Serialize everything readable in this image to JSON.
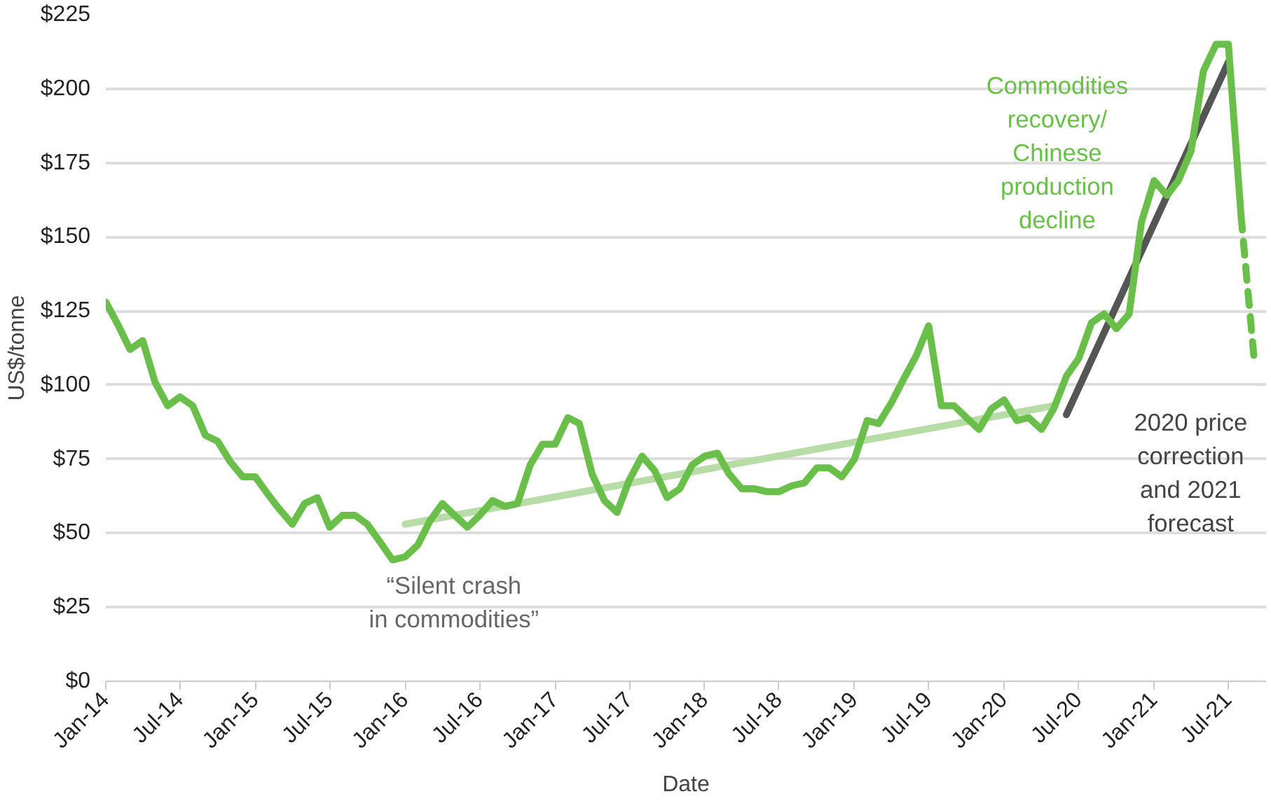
{
  "chart_data": {
    "type": "line",
    "xlabel": "Date",
    "ylabel": "US$/tonne",
    "xlim": [
      "2014-01",
      "2021-10"
    ],
    "ylim": [
      0,
      225
    ],
    "yticks": [
      {
        "value": 0,
        "label": "$0"
      },
      {
        "value": 25,
        "label": "$25"
      },
      {
        "value": 50,
        "label": "$50"
      },
      {
        "value": 75,
        "label": "$75"
      },
      {
        "value": 100,
        "label": "$100"
      },
      {
        "value": 125,
        "label": "$125"
      },
      {
        "value": 150,
        "label": "$150"
      },
      {
        "value": 175,
        "label": "$175"
      },
      {
        "value": 200,
        "label": "$200"
      },
      {
        "value": 225,
        "label": "$225"
      }
    ],
    "xticks": [
      {
        "value": "2014-01",
        "label": "Jan-14"
      },
      {
        "value": "2014-07",
        "label": "Jul-14"
      },
      {
        "value": "2015-01",
        "label": "Jan-15"
      },
      {
        "value": "2015-07",
        "label": "Jul-15"
      },
      {
        "value": "2016-01",
        "label": "Jan-16"
      },
      {
        "value": "2016-07",
        "label": "Jul-16"
      },
      {
        "value": "2017-01",
        "label": "Jan-17"
      },
      {
        "value": "2017-07",
        "label": "Jul-17"
      },
      {
        "value": "2018-01",
        "label": "Jan-18"
      },
      {
        "value": "2018-07",
        "label": "Jul-18"
      },
      {
        "value": "2019-01",
        "label": "Jan-19"
      },
      {
        "value": "2019-07",
        "label": "Jul-19"
      },
      {
        "value": "2020-01",
        "label": "Jan-20"
      },
      {
        "value": "2020-07",
        "label": "Jul-20"
      },
      {
        "value": "2021-01",
        "label": "Jan-21"
      },
      {
        "value": "2021-07",
        "label": "Jul-21"
      }
    ],
    "grid": "y",
    "series": [
      {
        "color": "#b7dca5",
        "line_style": "solid",
        "x": [
          "2016-01",
          "2020-05"
        ],
        "values": [
          53,
          93
        ]
      },
      {
        "color": "#555555",
        "line_style": "solid",
        "x": [
          "2020-06",
          "2021-07"
        ],
        "values": [
          90,
          209
        ]
      },
      {
        "color": "#6abf4b",
        "line_style": "solid",
        "x": [
          "2014-01",
          "2014-02",
          "2014-03",
          "2014-04",
          "2014-05",
          "2014-06",
          "2014-07",
          "2014-08",
          "2014-09",
          "2014-10",
          "2014-11",
          "2014-12",
          "2015-01",
          "2015-02",
          "2015-03",
          "2015-04",
          "2015-05",
          "2015-06",
          "2015-07",
          "2015-08",
          "2015-09",
          "2015-10",
          "2015-11",
          "2015-12",
          "2016-01",
          "2016-02",
          "2016-03",
          "2016-04",
          "2016-05",
          "2016-06",
          "2016-07",
          "2016-08",
          "2016-09",
          "2016-10",
          "2016-11",
          "2016-12",
          "2017-01",
          "2017-02",
          "2017-03",
          "2017-04",
          "2017-05",
          "2017-06",
          "2017-07",
          "2017-08",
          "2017-09",
          "2017-10",
          "2017-11",
          "2017-12",
          "2018-01",
          "2018-02",
          "2018-03",
          "2018-04",
          "2018-05",
          "2018-06",
          "2018-07",
          "2018-08",
          "2018-09",
          "2018-10",
          "2018-11",
          "2018-12",
          "2019-01",
          "2019-02",
          "2019-03",
          "2019-04",
          "2019-05",
          "2019-06",
          "2019-07",
          "2019-08",
          "2019-09",
          "2019-10",
          "2019-11",
          "2019-12",
          "2020-01",
          "2020-02",
          "2020-03",
          "2020-04",
          "2020-05",
          "2020-06",
          "2020-07",
          "2020-08",
          "2020-09",
          "2020-10",
          "2020-11",
          "2020-12",
          "2021-01",
          "2021-02",
          "2021-03",
          "2021-04",
          "2021-05",
          "2021-06",
          "2021-07",
          "2021-08"
        ],
        "values": [
          128,
          120,
          112,
          115,
          101,
          93,
          96,
          93,
          83,
          81,
          74,
          69,
          69,
          63,
          58,
          53,
          60,
          62,
          52,
          56,
          56,
          53,
          47,
          41,
          42,
          46,
          54,
          60,
          56,
          52,
          56,
          61,
          59,
          60,
          73,
          80,
          80,
          89,
          87,
          70,
          61,
          57,
          68,
          76,
          71,
          62,
          65,
          73,
          76,
          77,
          70,
          65,
          65,
          64,
          64,
          66,
          67,
          72,
          72,
          69,
          75,
          88,
          87,
          94,
          102,
          110,
          120,
          93,
          93,
          89,
          85,
          92,
          95,
          88,
          89,
          85,
          92,
          103,
          109,
          121,
          124,
          119,
          124,
          155,
          169,
          164,
          169,
          179,
          206,
          215,
          215,
          157
        ]
      },
      {
        "color": "#6abf4b",
        "line_style": "dashed",
        "x": [
          "2021-08",
          "2021-09"
        ],
        "values": [
          157,
          110
        ]
      }
    ],
    "annotations": [
      "“Silent crash\nin commodities”",
      "Commodities\nrecovery/\nChinese\nproduction\ndecline",
      "2020 price\ncorrection\nand 2021\nforecast"
    ]
  }
}
